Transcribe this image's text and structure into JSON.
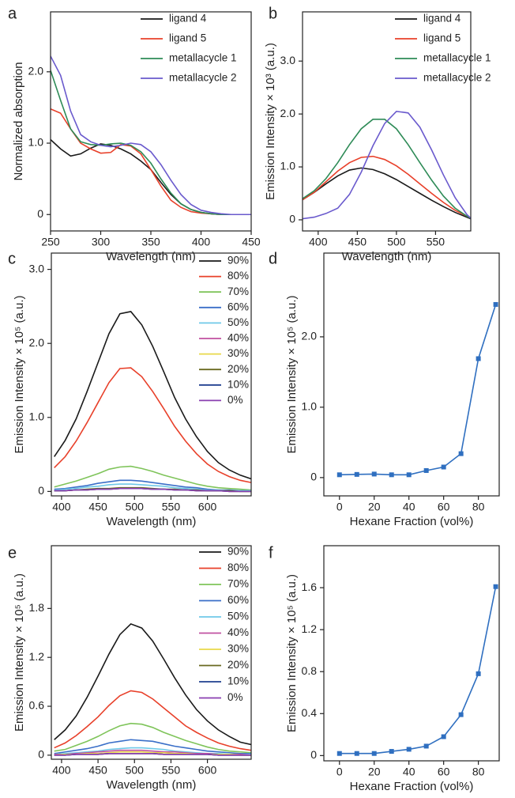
{
  "chart_data": [
    {
      "type": "line",
      "label": "a",
      "x_label": "Wavelength (nm)",
      "y_label": "Normalized absorption",
      "x": [
        250,
        260,
        270,
        280,
        290,
        300,
        310,
        320,
        330,
        340,
        350,
        360,
        370,
        380,
        390,
        400,
        410,
        420,
        430,
        440,
        450
      ],
      "series": [
        {
          "name": "ligand 4",
          "color": "#1a1a1a",
          "values": [
            1.05,
            0.92,
            0.82,
            0.85,
            0.93,
            0.99,
            0.97,
            0.92,
            0.85,
            0.75,
            0.63,
            0.45,
            0.28,
            0.15,
            0.07,
            0.03,
            0.01,
            0,
            0,
            0,
            0
          ]
        },
        {
          "name": "ligand 5",
          "color": "#e8402a",
          "values": [
            1.48,
            1.42,
            1.2,
            1.0,
            0.92,
            0.86,
            0.87,
            0.98,
            0.96,
            0.85,
            0.63,
            0.4,
            0.2,
            0.1,
            0.04,
            0.02,
            0.01,
            0,
            0,
            0,
            0
          ]
        },
        {
          "name": "metallacycle 1",
          "color": "#2e8b57",
          "values": [
            2.02,
            1.6,
            1.2,
            1.02,
            0.98,
            0.97,
            0.99,
            1.0,
            0.97,
            0.88,
            0.72,
            0.5,
            0.3,
            0.15,
            0.07,
            0.03,
            0.01,
            0,
            0,
            0,
            0
          ]
        },
        {
          "name": "metallacycle 2",
          "color": "#6a5acd",
          "values": [
            2.22,
            1.95,
            1.45,
            1.12,
            1.02,
            0.97,
            0.95,
            0.97,
            1.0,
            0.98,
            0.88,
            0.7,
            0.48,
            0.28,
            0.14,
            0.06,
            0.03,
            0.01,
            0,
            0,
            0
          ]
        }
      ],
      "xlim": [
        250,
        450
      ],
      "ylim": [
        -0.23,
        2.84
      ],
      "xticks": [
        250,
        300,
        350,
        400,
        450
      ],
      "yticks": [
        0,
        {
          "value": 1,
          "label": "1.0"
        },
        {
          "value": 2,
          "label": "2.0"
        }
      ]
    },
    {
      "type": "line",
      "label": "b",
      "x_label": "Wavelength (nm)",
      "y_label": "Emission Intensity × 10³ (a.u.)",
      "x": [
        380,
        395,
        410,
        425,
        440,
        455,
        470,
        485,
        500,
        515,
        530,
        545,
        560,
        575,
        590,
        595
      ],
      "series": [
        {
          "name": "ligand 4",
          "color": "#1a1a1a",
          "values": [
            0.38,
            0.52,
            0.68,
            0.83,
            0.94,
            0.98,
            0.95,
            0.87,
            0.76,
            0.63,
            0.5,
            0.37,
            0.25,
            0.14,
            0.05,
            0.02
          ]
        },
        {
          "name": "ligand 5",
          "color": "#e8402a",
          "values": [
            0.38,
            0.52,
            0.72,
            0.92,
            1.08,
            1.18,
            1.2,
            1.14,
            1.02,
            0.86,
            0.68,
            0.5,
            0.33,
            0.18,
            0.07,
            0.03
          ]
        },
        {
          "name": "metallacycle 1",
          "color": "#2e8b57",
          "values": [
            0.4,
            0.55,
            0.78,
            1.08,
            1.42,
            1.72,
            1.9,
            1.9,
            1.72,
            1.42,
            1.08,
            0.75,
            0.45,
            0.22,
            0.07,
            0.03
          ]
        },
        {
          "name": "metallacycle 2",
          "color": "#6a5acd",
          "values": [
            0.02,
            0.05,
            0.12,
            0.22,
            0.48,
            0.9,
            1.4,
            1.82,
            2.05,
            2.02,
            1.75,
            1.32,
            0.85,
            0.42,
            0.1,
            0.03
          ]
        }
      ],
      "xlim": [
        380,
        595
      ],
      "ylim": [
        -0.21,
        3.93
      ],
      "xticks": [
        400,
        450,
        500,
        550
      ],
      "yticks": [
        0,
        {
          "value": 1,
          "label": "1.0"
        },
        {
          "value": 2,
          "label": "2.0"
        },
        {
          "value": 3,
          "label": "3.0"
        }
      ]
    },
    {
      "type": "line",
      "label": "c",
      "x_label": "Wavelength (nm)",
      "y_label": "Emission Intensity × 10⁵ (a.u.)",
      "x": [
        390,
        405,
        420,
        435,
        450,
        465,
        480,
        495,
        510,
        525,
        540,
        555,
        570,
        585,
        600,
        615,
        630,
        645,
        660
      ],
      "series": [
        {
          "name": "90%",
          "color": "#1a1a1a",
          "values": [
            0.47,
            0.69,
            0.98,
            1.35,
            1.74,
            2.13,
            2.4,
            2.43,
            2.25,
            1.96,
            1.62,
            1.27,
            0.98,
            0.74,
            0.54,
            0.39,
            0.29,
            0.22,
            0.17
          ]
        },
        {
          "name": "80%",
          "color": "#e8402a",
          "values": [
            0.32,
            0.47,
            0.68,
            0.93,
            1.2,
            1.47,
            1.66,
            1.67,
            1.55,
            1.35,
            1.12,
            0.88,
            0.68,
            0.51,
            0.37,
            0.27,
            0.2,
            0.15,
            0.12
          ]
        },
        {
          "name": "70%",
          "color": "#7fc45a",
          "values": [
            0.06,
            0.1,
            0.14,
            0.19,
            0.24,
            0.3,
            0.33,
            0.34,
            0.31,
            0.27,
            0.22,
            0.18,
            0.14,
            0.1,
            0.07,
            0.05,
            0.04,
            0.03,
            0.02
          ]
        },
        {
          "name": "60%",
          "color": "#3a6fc8",
          "values": [
            0.03,
            0.04,
            0.06,
            0.08,
            0.11,
            0.13,
            0.15,
            0.15,
            0.14,
            0.12,
            0.1,
            0.08,
            0.06,
            0.05,
            0.03,
            0.02,
            0.02,
            0.01,
            0.01
          ]
        },
        {
          "name": "50%",
          "color": "#6fc8e8",
          "values": [
            0.02,
            0.03,
            0.04,
            0.06,
            0.07,
            0.09,
            0.1,
            0.1,
            0.09,
            0.08,
            0.07,
            0.05,
            0.04,
            0.03,
            0.02,
            0.02,
            0.01,
            0.01,
            0.01
          ]
        },
        {
          "name": "40%",
          "color": "#c050a0",
          "values": [
            0.01,
            0.01,
            0.02,
            0.02,
            0.03,
            0.03,
            0.04,
            0.04,
            0.04,
            0.03,
            0.03,
            0.02,
            0.02,
            0.01,
            0.01,
            0.01,
            0,
            0,
            0
          ]
        },
        {
          "name": "30%",
          "color": "#e8d84a",
          "values": [
            0.01,
            0.01,
            0.02,
            0.02,
            0.03,
            0.03,
            0.04,
            0.04,
            0.04,
            0.03,
            0.03,
            0.02,
            0.02,
            0.01,
            0.01,
            0.01,
            0,
            0,
            0
          ]
        },
        {
          "name": "20%",
          "color": "#6a6a20",
          "values": [
            0.01,
            0.01,
            0.02,
            0.03,
            0.04,
            0.04,
            0.05,
            0.05,
            0.05,
            0.04,
            0.03,
            0.03,
            0.02,
            0.02,
            0.01,
            0.01,
            0.01,
            0,
            0
          ]
        },
        {
          "name": "10%",
          "color": "#1f3f8f",
          "values": [
            0.01,
            0.01,
            0.02,
            0.02,
            0.03,
            0.03,
            0.04,
            0.04,
            0.04,
            0.03,
            0.03,
            0.02,
            0.02,
            0.01,
            0.01,
            0.01,
            0,
            0,
            0
          ]
        },
        {
          "name": "0%",
          "color": "#8a3fb0",
          "values": [
            0.01,
            0.01,
            0.02,
            0.02,
            0.03,
            0.03,
            0.04,
            0.04,
            0.04,
            0.03,
            0.03,
            0.02,
            0.02,
            0.01,
            0.01,
            0.01,
            0,
            0,
            0
          ]
        }
      ],
      "xlim": [
        386,
        660
      ],
      "ylim": [
        -0.06,
        3.22
      ],
      "xticks": [
        400,
        450,
        500,
        550,
        600
      ],
      "yticks": [
        0,
        {
          "value": 1,
          "label": "1.0"
        },
        {
          "value": 2,
          "label": "2.0"
        },
        {
          "value": 3,
          "label": "3.0"
        }
      ]
    },
    {
      "type": "line",
      "label": "d",
      "x_label": "Hexane Fraction (vol%)",
      "y_label": "Emission Intensity × 10⁵ (a.u.)",
      "marker": "square",
      "color": "#2f6fc0",
      "x": [
        0,
        10,
        20,
        30,
        40,
        50,
        60,
        70,
        80,
        90
      ],
      "values": [
        0.04,
        0.045,
        0.05,
        0.04,
        0.04,
        0.1,
        0.15,
        0.34,
        1.69,
        2.46
      ],
      "xlim": [
        -9,
        92
      ],
      "ylim": [
        -0.26,
        3.19
      ],
      "xticks": [
        0,
        20,
        40,
        60,
        80
      ],
      "yticks": [
        0,
        {
          "value": 1,
          "label": "1.0"
        },
        {
          "value": 2,
          "label": "2.0"
        }
      ]
    },
    {
      "type": "line",
      "label": "e",
      "x_label": "Wavelength (nm)",
      "y_label": "Emission Intensity × 10⁵ (a.u.)",
      "x": [
        390,
        405,
        420,
        435,
        450,
        465,
        480,
        495,
        510,
        525,
        540,
        555,
        570,
        585,
        600,
        615,
        630,
        645,
        660
      ],
      "series": [
        {
          "name": "90%",
          "color": "#1a1a1a",
          "values": [
            0.19,
            0.31,
            0.48,
            0.71,
            0.97,
            1.24,
            1.48,
            1.61,
            1.56,
            1.4,
            1.18,
            0.95,
            0.74,
            0.56,
            0.42,
            0.31,
            0.23,
            0.16,
            0.13
          ]
        },
        {
          "name": "80%",
          "color": "#e8402a",
          "values": [
            0.09,
            0.15,
            0.24,
            0.35,
            0.47,
            0.61,
            0.73,
            0.79,
            0.77,
            0.69,
            0.58,
            0.47,
            0.36,
            0.28,
            0.21,
            0.15,
            0.11,
            0.08,
            0.06
          ]
        },
        {
          "name": "70%",
          "color": "#7fc45a",
          "values": [
            0.05,
            0.07,
            0.12,
            0.17,
            0.23,
            0.3,
            0.36,
            0.39,
            0.38,
            0.34,
            0.28,
            0.23,
            0.18,
            0.14,
            0.1,
            0.07,
            0.05,
            0.04,
            0.03
          ]
        },
        {
          "name": "60%",
          "color": "#3a6fc8",
          "values": [
            0.02,
            0.04,
            0.06,
            0.08,
            0.11,
            0.15,
            0.17,
            0.19,
            0.18,
            0.17,
            0.14,
            0.11,
            0.09,
            0.07,
            0.05,
            0.04,
            0.03,
            0.02,
            0.02
          ]
        },
        {
          "name": "50%",
          "color": "#6fc8e8",
          "values": [
            0.01,
            0.02,
            0.03,
            0.04,
            0.05,
            0.07,
            0.08,
            0.09,
            0.09,
            0.08,
            0.07,
            0.05,
            0.04,
            0.03,
            0.02,
            0.02,
            0.01,
            0.01,
            0.01
          ]
        },
        {
          "name": "40%",
          "color": "#c050a0",
          "values": [
            0.01,
            0.01,
            0.02,
            0.03,
            0.04,
            0.05,
            0.06,
            0.06,
            0.06,
            0.05,
            0.04,
            0.04,
            0.03,
            0.02,
            0.02,
            0.01,
            0.01,
            0.01,
            0
          ]
        },
        {
          "name": "30%",
          "color": "#e8d84a",
          "values": [
            0,
            0.01,
            0.01,
            0.02,
            0.02,
            0.03,
            0.04,
            0.04,
            0.04,
            0.03,
            0.03,
            0.02,
            0.02,
            0.01,
            0.01,
            0.01,
            0.01,
            0,
            0
          ]
        },
        {
          "name": "20%",
          "color": "#6a6a20",
          "values": [
            0,
            0,
            0.01,
            0.01,
            0.01,
            0.02,
            0.02,
            0.02,
            0.02,
            0.02,
            0.01,
            0.01,
            0.01,
            0.01,
            0.01,
            0,
            0,
            0,
            0
          ]
        },
        {
          "name": "10%",
          "color": "#1f3f8f",
          "values": [
            0,
            0,
            0.01,
            0.01,
            0.01,
            0.02,
            0.02,
            0.02,
            0.02,
            0.02,
            0.01,
            0.01,
            0.01,
            0.01,
            0.01,
            0,
            0,
            0,
            0
          ]
        },
        {
          "name": "0%",
          "color": "#8a3fb0",
          "values": [
            0,
            0,
            0.01,
            0.01,
            0.01,
            0.02,
            0.02,
            0.02,
            0.02,
            0.02,
            0.01,
            0.01,
            0.01,
            0.01,
            0.01,
            0,
            0,
            0,
            0
          ]
        }
      ],
      "xlim": [
        386,
        660
      ],
      "ylim": [
        -0.05,
        2.57
      ],
      "xticks": [
        400,
        450,
        500,
        550,
        600
      ],
      "yticks": [
        0,
        0.6,
        1.2,
        1.8
      ]
    },
    {
      "type": "line",
      "label": "f",
      "x_label": "Hexane Fraction (vol%)",
      "y_label": "Emission Intensity × 10⁵ (a.u.)",
      "marker": "square",
      "color": "#2f6fc0",
      "x": [
        0,
        10,
        20,
        30,
        40,
        50,
        60,
        70,
        80,
        90
      ],
      "values": [
        0.02,
        0.02,
        0.02,
        0.04,
        0.06,
        0.09,
        0.18,
        0.39,
        0.78,
        1.61
      ],
      "xlim": [
        -9,
        92
      ],
      "ylim": [
        -0.05,
        2.0
      ],
      "xticks": [
        0,
        20,
        40,
        60,
        80
      ],
      "yticks": [
        0,
        0.4,
        0.8,
        1.2,
        1.6
      ]
    }
  ]
}
